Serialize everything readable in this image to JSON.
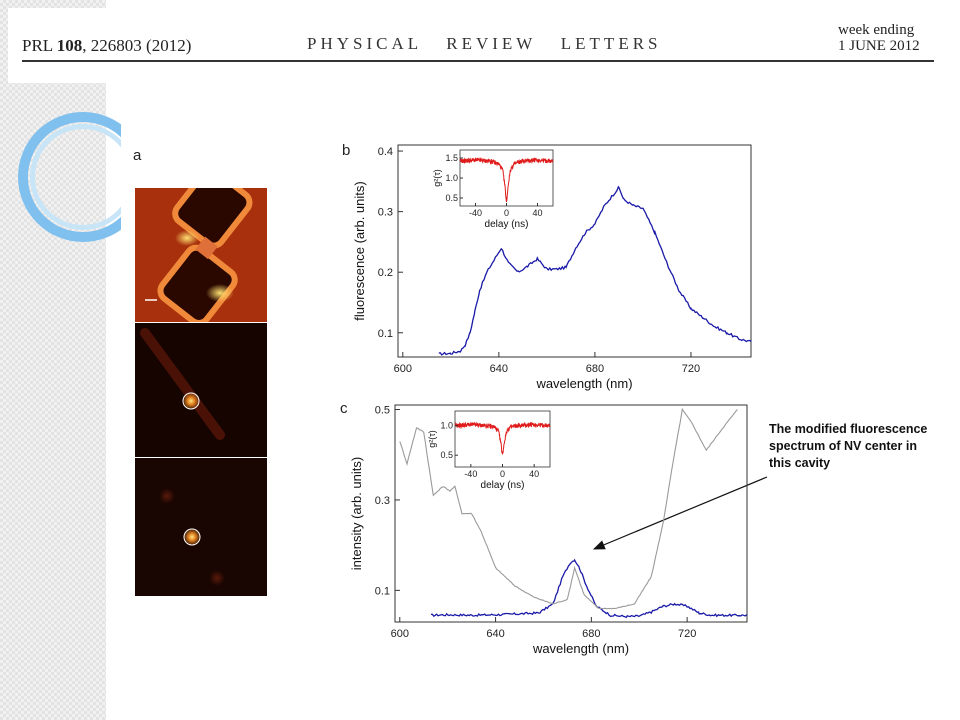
{
  "header": {
    "journal_prefix": "PRL",
    "volume": "108",
    "article_year": ", 226803 (2012)",
    "journal_name": "PHYSICAL   REVIEW   LETTERS",
    "week_line1": "week ending",
    "week_line2": "1 JUNE 2012"
  },
  "panels": {
    "a_label": "a",
    "b_label": "b",
    "c_label": "c"
  },
  "annotation": {
    "line1": "The modified fluorescence",
    "line2": "spectrum of NV center in",
    "line3": "this cavity"
  },
  "chart_data": [
    {
      "panel": "b",
      "type": "line",
      "xlabel": "wavelength (nm)",
      "ylabel": "fluorescence (arb. units)",
      "xlim": [
        598,
        745
      ],
      "ylim": [
        0.06,
        0.41
      ],
      "xticks": [
        "600",
        "640",
        "680",
        "720"
      ],
      "xtick_values": [
        600,
        640,
        680,
        720
      ],
      "yticks": [
        "0.1",
        "0.2",
        "0.3",
        "0.4"
      ],
      "ytick_values": [
        0.1,
        0.2,
        0.3,
        0.4
      ],
      "series": [
        {
          "color": "#1a1aa8",
          "x": [
            615,
            620,
            624,
            626,
            628,
            630,
            632,
            635,
            638,
            641,
            644,
            648,
            652,
            656,
            660,
            664,
            668,
            672,
            676,
            680,
            684,
            688,
            690,
            692,
            696,
            700,
            705,
            710,
            715,
            720,
            725,
            730,
            735,
            740,
            745
          ],
          "y": [
            0.065,
            0.066,
            0.07,
            0.08,
            0.1,
            0.135,
            0.17,
            0.2,
            0.22,
            0.24,
            0.215,
            0.2,
            0.21,
            0.222,
            0.205,
            0.205,
            0.208,
            0.24,
            0.265,
            0.28,
            0.31,
            0.33,
            0.34,
            0.32,
            0.31,
            0.305,
            0.265,
            0.215,
            0.17,
            0.14,
            0.125,
            0.11,
            0.1,
            0.09,
            0.085
          ]
        }
      ],
      "inset": {
        "xlabel": "delay (ns)",
        "ylabel": "g²(τ)",
        "xticks": [
          "-40",
          "0",
          "40"
        ],
        "xtick_values": [
          -40,
          0,
          40
        ],
        "yticks": [
          "0.5",
          "1.0",
          "1.5"
        ],
        "ytick_values": [
          0.5,
          1.0,
          1.5
        ],
        "xlim": [
          -60,
          60
        ],
        "ylim": [
          0.3,
          1.7
        ],
        "color": "#e01b1b",
        "x": [
          -60,
          -40,
          -20,
          -10,
          -5,
          -2,
          0,
          2,
          5,
          10,
          20,
          40,
          60
        ],
        "y": [
          1.42,
          1.45,
          1.42,
          1.35,
          1.2,
          0.8,
          0.38,
          0.8,
          1.2,
          1.35,
          1.42,
          1.45,
          1.42
        ]
      }
    },
    {
      "panel": "c",
      "type": "line",
      "xlabel": "wavelength (nm)",
      "ylabel": "intensity (arb. units)",
      "xlim": [
        598,
        745
      ],
      "ylim": [
        0.03,
        0.51
      ],
      "xticks": [
        "600",
        "640",
        "680",
        "720"
      ],
      "xtick_values": [
        600,
        640,
        680,
        720
      ],
      "yticks": [
        "0.1",
        "0.3",
        "0.5"
      ],
      "ytick_values": [
        0.1,
        0.3,
        0.5
      ],
      "series": [
        {
          "color": "#1a1aa8",
          "x": [
            613,
            620,
            630,
            640,
            650,
            658,
            664,
            668,
            671,
            673,
            675,
            678,
            682,
            688,
            695,
            700,
            705,
            710,
            715,
            720,
            725,
            730,
            740,
            745
          ],
          "y": [
            0.045,
            0.046,
            0.045,
            0.046,
            0.048,
            0.05,
            0.07,
            0.13,
            0.16,
            0.168,
            0.15,
            0.11,
            0.065,
            0.045,
            0.042,
            0.043,
            0.052,
            0.065,
            0.07,
            0.065,
            0.05,
            0.045,
            0.045,
            0.045
          ]
        },
        {
          "color": "#9a9a9a",
          "x": [
            600,
            603,
            607,
            610,
            614,
            618,
            621,
            623,
            626,
            630,
            634,
            640,
            648,
            656,
            664,
            670,
            673,
            677,
            683,
            690,
            698,
            705,
            710,
            714,
            718,
            722,
            728,
            735,
            741
          ],
          "y": [
            0.43,
            0.38,
            0.46,
            0.45,
            0.31,
            0.33,
            0.32,
            0.33,
            0.27,
            0.27,
            0.23,
            0.15,
            0.11,
            0.085,
            0.07,
            0.08,
            0.15,
            0.09,
            0.06,
            0.06,
            0.07,
            0.13,
            0.25,
            0.38,
            0.5,
            0.47,
            0.41,
            0.46,
            0.5
          ]
        }
      ],
      "inset": {
        "xlabel": "delay (ns)",
        "ylabel": "g²(τ)",
        "xticks": [
          "-40",
          "0",
          "40"
        ],
        "xtick_values": [
          -40,
          0,
          40
        ],
        "yticks": [
          "0.5",
          "1.0"
        ],
        "ytick_values": [
          0.5,
          1.0
        ],
        "xlim": [
          -60,
          60
        ],
        "ylim": [
          0.3,
          1.25
        ],
        "color": "#e01b1b",
        "x": [
          -60,
          -40,
          -20,
          -10,
          -5,
          -2,
          0,
          2,
          5,
          10,
          20,
          40,
          60
        ],
        "y": [
          1.0,
          1.02,
          1.0,
          0.98,
          0.9,
          0.7,
          0.5,
          0.7,
          0.9,
          0.98,
          1.0,
          1.02,
          1.0
        ]
      }
    }
  ]
}
